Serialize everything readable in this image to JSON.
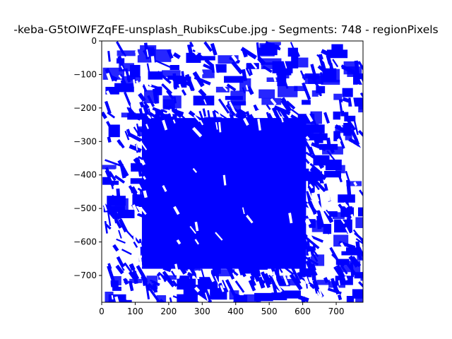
{
  "window_title": "-keba-G5tOIWFZqFE-unsplash_RubiksCube.jpg - Segments: 748 - regionPixels",
  "chart_data": {
    "type": "scatter",
    "title": "-keba-G5tOIWFZqFE-unsplash_RubiksCube.jpg - Segments: 748 - regionPixels",
    "xlabel": "",
    "ylabel": "",
    "xlim": [
      0,
      780
    ],
    "ylim": [
      -780,
      0
    ],
    "xticks": [
      0,
      100,
      200,
      300,
      400,
      500,
      600,
      700
    ],
    "yticks": [
      0,
      -100,
      -200,
      -300,
      -400,
      -500,
      -600,
      -700
    ],
    "grid": false,
    "segment_count": 748,
    "mark_color": "#0000ff",
    "background": "#ffffff",
    "dense_region": {
      "x": [
        90,
        640
      ],
      "y": [
        -720,
        -190
      ]
    }
  }
}
